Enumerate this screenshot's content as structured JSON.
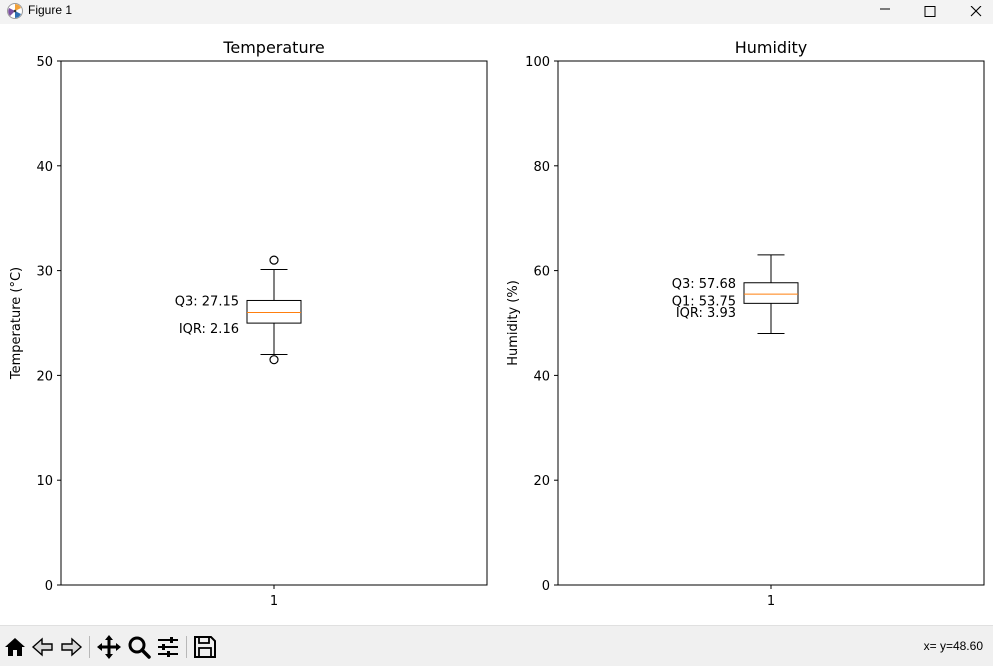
{
  "window": {
    "title": "Figure 1",
    "controls": [
      "minimize",
      "maximize",
      "close"
    ]
  },
  "chart_data": [
    {
      "type": "box",
      "title": "Temperature",
      "xlabel": "",
      "ylabel": "Temperature (°C)",
      "ylim": [
        0,
        50
      ],
      "yticks": [
        "0",
        "10",
        "20",
        "30",
        "40",
        "50"
      ],
      "xticks": [
        "1"
      ],
      "grid": false,
      "box": {
        "whisker_low": 22.0,
        "q1": 24.99,
        "median": 26.0,
        "q3": 27.15,
        "whisker_high": 30.1,
        "outliers": [
          21.5,
          31.0
        ],
        "color": "#000000",
        "median_color": "#ff7f0e"
      },
      "annotations": [
        {
          "text": "Q3: 27.15",
          "y": 27.15
        },
        {
          "text": "IQR: 2.16",
          "y": 24.5
        }
      ]
    },
    {
      "type": "box",
      "title": "Humidity",
      "xlabel": "",
      "ylabel": "Humidity (%)",
      "ylim": [
        0,
        100
      ],
      "yticks": [
        "0",
        "20",
        "40",
        "60",
        "80",
        "100"
      ],
      "xticks": [
        "1"
      ],
      "grid": false,
      "box": {
        "whisker_low": 48.0,
        "q1": 53.75,
        "median": 55.5,
        "q3": 57.68,
        "whisker_high": 63.0,
        "outliers": [],
        "color": "#000000",
        "median_color": "#ff7f0e"
      },
      "annotations": [
        {
          "text": "Q3: 57.68",
          "y": 57.68
        },
        {
          "text": "Q1: 53.75",
          "y": 54.3
        },
        {
          "text": "IQR: 3.93",
          "y": 52.1
        }
      ]
    }
  ],
  "toolbar": {
    "buttons": [
      {
        "name": "home-icon",
        "title": "Home"
      },
      {
        "name": "back-icon",
        "title": "Back"
      },
      {
        "name": "forward-icon",
        "title": "Forward"
      },
      {
        "name": "pan-icon",
        "title": "Pan"
      },
      {
        "name": "zoom-icon",
        "title": "Zoom"
      },
      {
        "name": "configure-subplots-icon",
        "title": "Configure subplots"
      },
      {
        "name": "save-icon",
        "title": "Save"
      }
    ],
    "coords_text": "x= y=48.60"
  }
}
